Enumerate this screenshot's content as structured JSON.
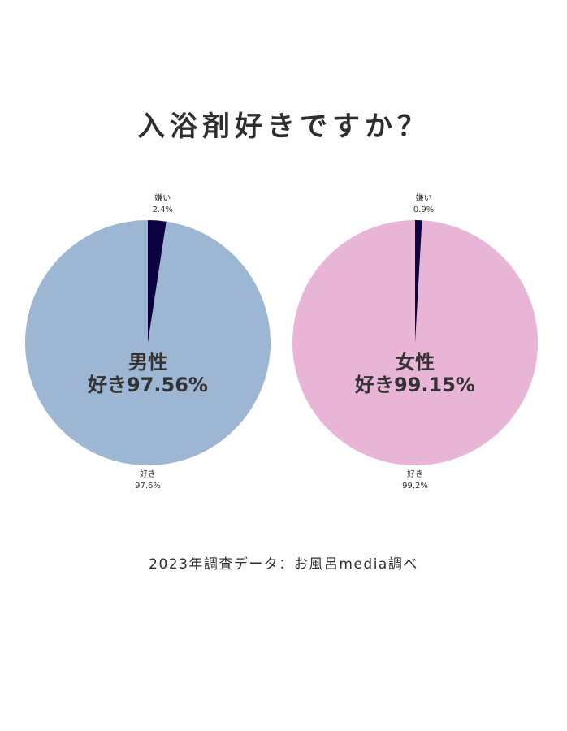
{
  "title": "入浴剤好きですか？",
  "footer": "2023年調査データ：お風呂media調べ",
  "colors": {
    "like_male": "#9db6d3",
    "like_female": "#e9b5d6",
    "dislike": "#0c0043"
  },
  "chart_data": [
    {
      "type": "pie",
      "center_title": "男性",
      "center_value": "好き97.56%",
      "slices": [
        {
          "label": "好き",
          "value": 97.6,
          "display": "97.6%",
          "color": "#9db6d3"
        },
        {
          "label": "嫌い",
          "value": 2.4,
          "display": "2.4%",
          "color": "#0c0043"
        }
      ]
    },
    {
      "type": "pie",
      "center_title": "女性",
      "center_value": "好き99.15%",
      "slices": [
        {
          "label": "好き",
          "value": 99.2,
          "display": "99.2%",
          "color": "#e9b5d6"
        },
        {
          "label": "嫌い",
          "value": 0.9,
          "display": "0.9%",
          "color": "#0c0043"
        }
      ]
    }
  ]
}
